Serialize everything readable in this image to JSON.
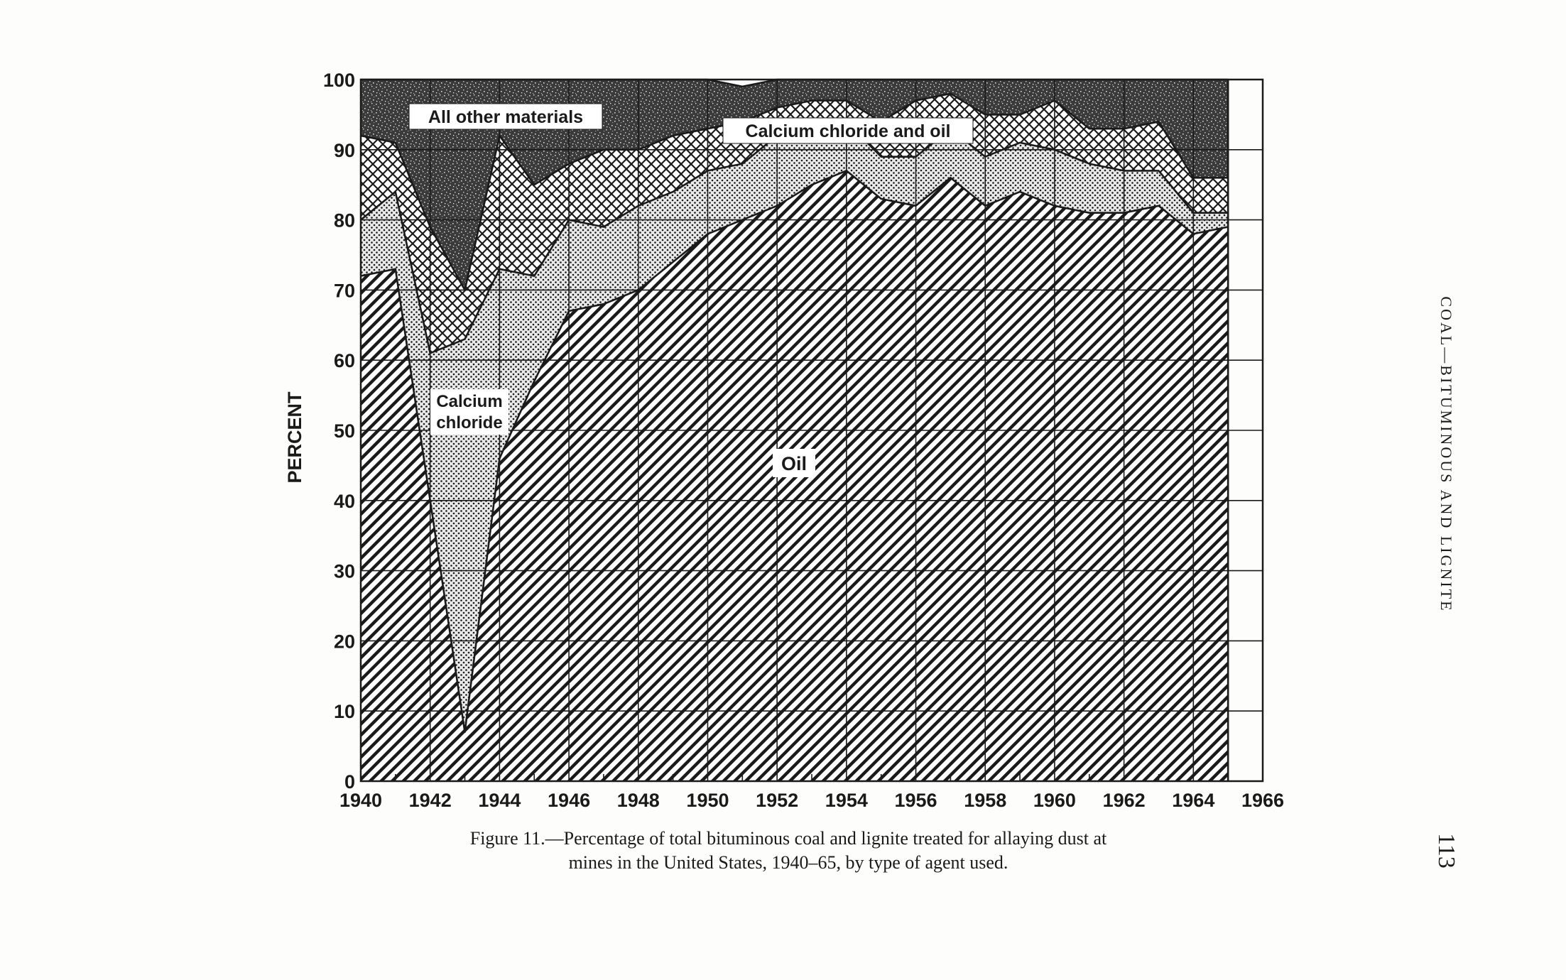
{
  "chart_data": {
    "type": "area",
    "stacked": true,
    "ylabel": "PERCENT",
    "ylim": [
      0,
      100
    ],
    "xlim": [
      1940,
      1966
    ],
    "x": [
      1940,
      1941,
      1942,
      1943,
      1944,
      1945,
      1946,
      1947,
      1948,
      1949,
      1950,
      1951,
      1952,
      1953,
      1954,
      1955,
      1956,
      1957,
      1958,
      1959,
      1960,
      1961,
      1962,
      1963,
      1964,
      1965
    ],
    "yticks": [
      0,
      10,
      20,
      30,
      40,
      50,
      60,
      70,
      80,
      90,
      100
    ],
    "xticks": [
      1940,
      1942,
      1944,
      1946,
      1948,
      1950,
      1952,
      1954,
      1956,
      1958,
      1960,
      1962,
      1964,
      1966
    ],
    "grid": true,
    "series": [
      {
        "name": "Oil",
        "pattern": "diagonal-hatch",
        "values": [
          72,
          73,
          40,
          7,
          46,
          57,
          67,
          68,
          70,
          74,
          78,
          80,
          82,
          85,
          87,
          83,
          82,
          86,
          82,
          84,
          82,
          81,
          81,
          82,
          78,
          79
        ]
      },
      {
        "name": "Calcium chloride",
        "pattern": "dots",
        "values": [
          8,
          11,
          21,
          56,
          27,
          15,
          13,
          11,
          12,
          10,
          9,
          8,
          10,
          8,
          7,
          6,
          7,
          7,
          7,
          7,
          8,
          7,
          6,
          5,
          3,
          2
        ]
      },
      {
        "name": "Calcium chloride and oil",
        "pattern": "cross-hatch",
        "values": [
          12,
          7,
          18,
          7,
          19,
          13,
          8,
          11,
          8,
          8,
          6,
          6,
          4,
          4,
          3,
          5,
          8,
          5,
          6,
          4,
          7,
          5,
          6,
          7,
          5,
          5
        ]
      },
      {
        "name": "All other materials",
        "pattern": "stipple",
        "values": [
          8,
          9,
          21,
          30,
          8,
          15,
          12,
          10,
          10,
          8,
          7,
          5,
          4,
          3,
          3,
          6,
          3,
          2,
          5,
          5,
          3,
          7,
          7,
          6,
          14,
          14
        ]
      }
    ],
    "labels": {
      "oil": "Oil",
      "calcium_chloride_line1": "Calcium",
      "calcium_chloride_line2": "chloride",
      "calcium_chloride_and_oil": "Calcium chloride and oil",
      "all_other": "All other materials"
    },
    "colors": {
      "ink": "#1a1a1a",
      "paper": "#ffffff",
      "stipple_dark": "#2b2b2b"
    }
  },
  "caption": {
    "line1": "Figure 11.—Percentage of total bituminous coal and lignite treated for allaying dust at",
    "line2": "mines in the United States, 1940–65, by type of agent used."
  },
  "running_head": "COAL—BITUMINOUS AND LIGNITE",
  "page_number": "113"
}
